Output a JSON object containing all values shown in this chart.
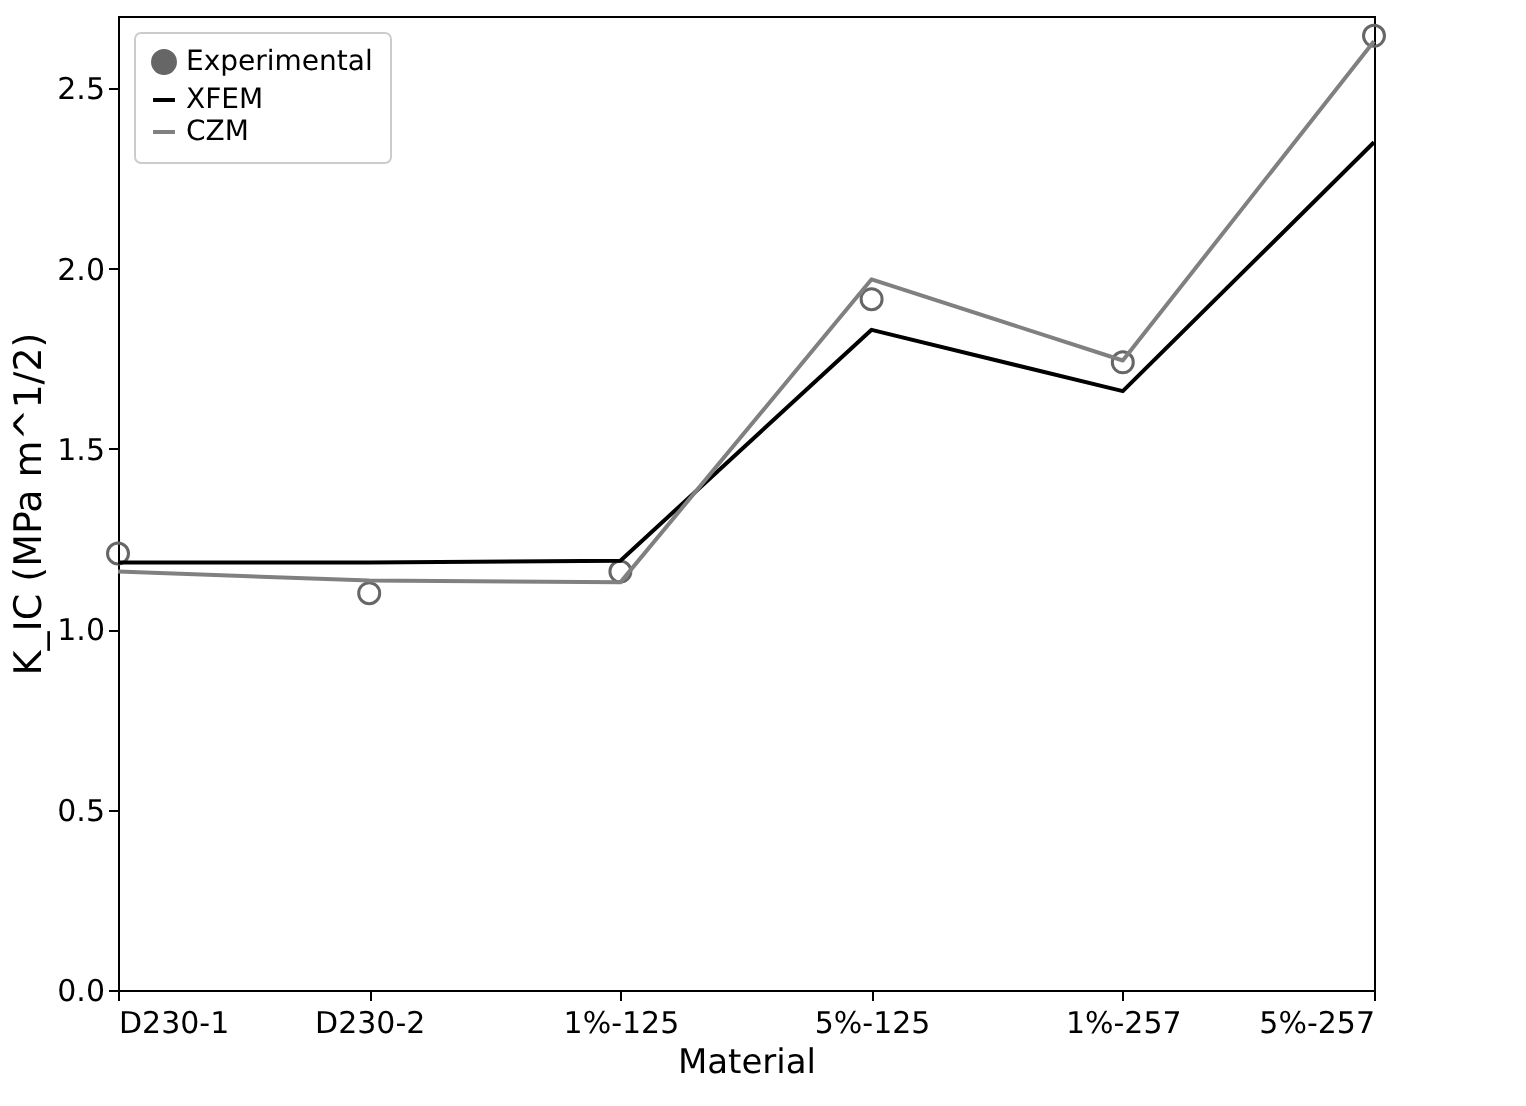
{
  "chart_data": {
    "type": "line",
    "xlabel": "Material",
    "ylabel": "K_IC (MPa m^1/2)",
    "categories": [
      "D230-1",
      "D230-2",
      "1%-125",
      "5%-125",
      "1%-257",
      "5%-257"
    ],
    "series": [
      {
        "name": "Experimental",
        "type": "scatter",
        "marker": "circle",
        "color": "#666666",
        "values": [
          1.21,
          1.1,
          1.16,
          1.915,
          1.74,
          2.645
        ]
      },
      {
        "name": "XFEM",
        "type": "line",
        "marker": "none",
        "color": "#000000",
        "values": [
          1.185,
          1.185,
          1.19,
          1.83,
          1.66,
          2.35
        ]
      },
      {
        "name": "CZM",
        "type": "line",
        "marker": "none",
        "color": "#808080",
        "values": [
          1.16,
          1.135,
          1.13,
          1.97,
          1.745,
          2.63
        ]
      }
    ],
    "ylim": [
      0,
      2.7
    ],
    "yticks": [
      {
        "value": 0,
        "label": "0.0"
      },
      0.5,
      {
        "value": 1,
        "label": "1.0"
      },
      1.5,
      {
        "value": 2,
        "label": "2.0"
      },
      2.5
    ],
    "grid": false,
    "legend": "top left"
  }
}
